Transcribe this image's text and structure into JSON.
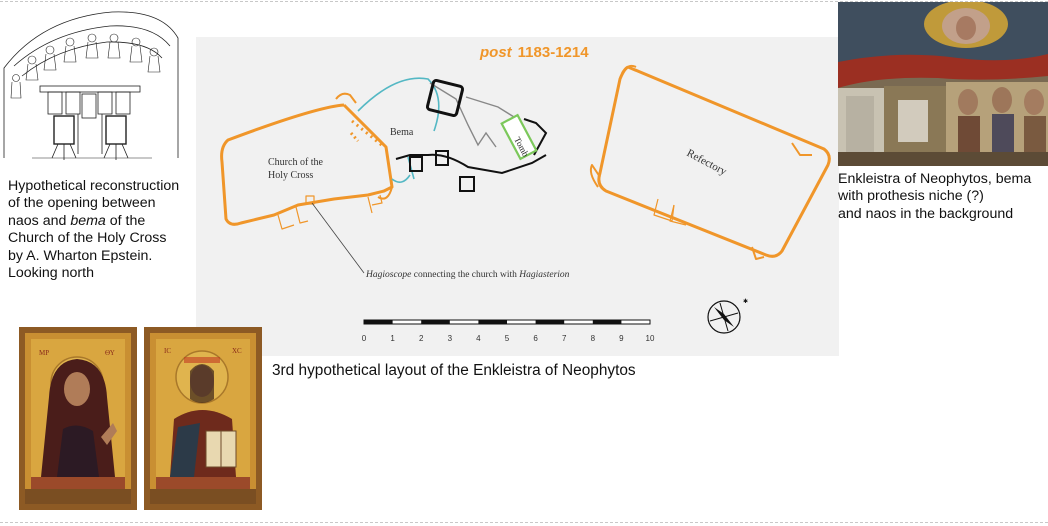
{
  "plan": {
    "title_post": "post",
    "title_dates": "1183-1214",
    "labels": {
      "church_line1": "Church of the",
      "church_line2": "Holy Cross",
      "bema": "Bema",
      "tomb": "Tomb",
      "refectory": "Refectory"
    },
    "hagioscope": {
      "word1": "Hagioscope",
      "middle": " connecting the church with ",
      "word2": "Hagiasterion"
    },
    "scale_ticks": [
      "0",
      "1",
      "2",
      "3",
      "4",
      "5",
      "6",
      "7",
      "8",
      "9",
      "10"
    ]
  },
  "captions": {
    "left": {
      "line1": "Hypothetical reconstruction",
      "line2": "of the opening between",
      "line3_a": "naos and ",
      "line3_b": "bema",
      "line3_c": " of the",
      "line4": "Church of the Holy Cross",
      "line5": "by A. Wharton Epstein.",
      "line6": "Looking north"
    },
    "right": {
      "line1": "Enkleistra of Neophytos, bema",
      "line2": "with prothesis niche (?)",
      "line3": "and naos in the background"
    },
    "center": "3rd hypothetical layout of the Enkleistra of Neophytos"
  },
  "colors": {
    "orange": "#f0962a",
    "teal": "#54b8c4",
    "green": "#7cc85b",
    "title_orange": "#f0962a"
  }
}
